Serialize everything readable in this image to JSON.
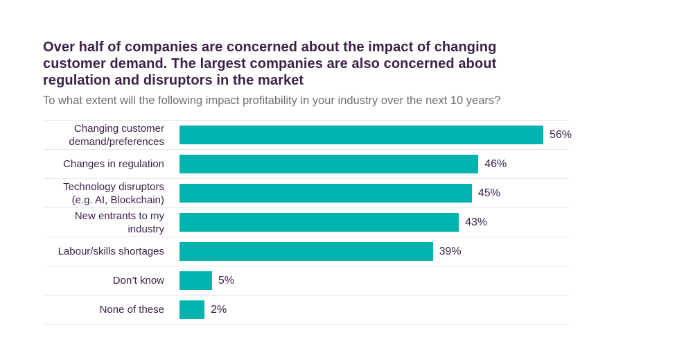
{
  "page": {
    "background_color": "#ffffff"
  },
  "header": {
    "title_lines": [
      "Over half of companies are concerned about the impact of changing",
      "customer demand. The largest companies are also concerned about",
      "regulation and disruptors in the market"
    ],
    "title_color": "#3d2148",
    "subtitle": "To what extent will the following impact profitability in your industry over the next 10 years?",
    "subtitle_color": "#6e6f72"
  },
  "chart_data": {
    "type": "bar",
    "orientation": "horizontal",
    "title": "Over half of companies are concerned about the impact of changing customer demand. The largest companies are also concerned about regulation and disruptors in the market",
    "subtitle": "To what extent will the following impact profitability in your industry over the next 10 years?",
    "categories": [
      "Changing customer demand/preferences",
      "Changes in regulation",
      "Technology disruptors (e.g. AI, Blockchain)",
      "New entrants to my industry",
      "Labour/skills shortages",
      "Don’t know",
      "None of these"
    ],
    "values": [
      56,
      46,
      45,
      43,
      39,
      5,
      2
    ],
    "value_labels": [
      "56%",
      "46%",
      "45%",
      "43%",
      "39%",
      "5%",
      "2%"
    ],
    "unit": "%",
    "xlim": [
      0,
      60
    ],
    "axis_visible": false,
    "grid": "row-dividers",
    "legend": "none",
    "bar_color": "#00b3af",
    "label_color": "#3d2148",
    "divider_color": "#e8e8ea"
  }
}
